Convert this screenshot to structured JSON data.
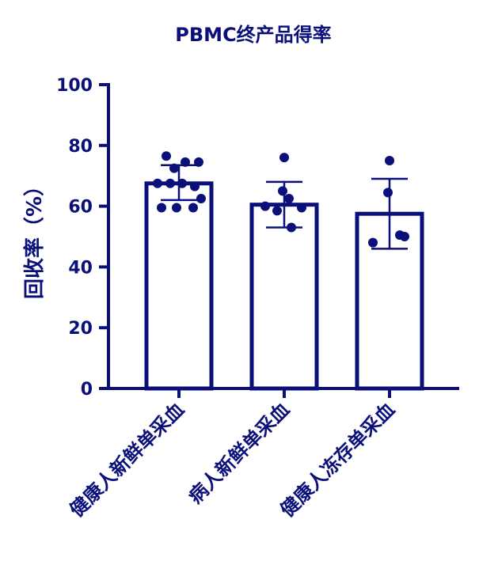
{
  "colors": {
    "primary": "#0b0f7a",
    "background": "#ffffff"
  },
  "chart_data": {
    "type": "bar",
    "title": "PBMC终产品得率",
    "xlabel": "",
    "ylabel": "回收率（%）",
    "ylim": [
      0,
      100
    ],
    "yticks": [
      0,
      20,
      40,
      60,
      80,
      100
    ],
    "ytick_labels": [
      "0",
      "20",
      "40",
      "60",
      "80",
      "100"
    ],
    "categories": [
      "健康人新鲜单采血",
      "病人新鲜单采血",
      "健康人冻存单采血"
    ],
    "values": [
      67.5,
      60.5,
      57.5
    ],
    "error_bars": [
      {
        "low": 62,
        "high": 73.5
      },
      {
        "low": 53,
        "high": 68
      },
      {
        "low": 46,
        "high": 69
      }
    ],
    "points": [
      [
        76.5,
        74.5,
        74.5,
        72.5,
        67.5,
        67.5,
        67.5,
        66.5,
        62.5,
        59.5,
        59.5,
        59.5
      ],
      [
        76,
        65,
        62.5,
        60,
        59.5,
        58.5,
        53
      ],
      [
        75,
        64.5,
        50.5,
        50,
        48
      ]
    ],
    "grid": false,
    "legend": "none"
  }
}
